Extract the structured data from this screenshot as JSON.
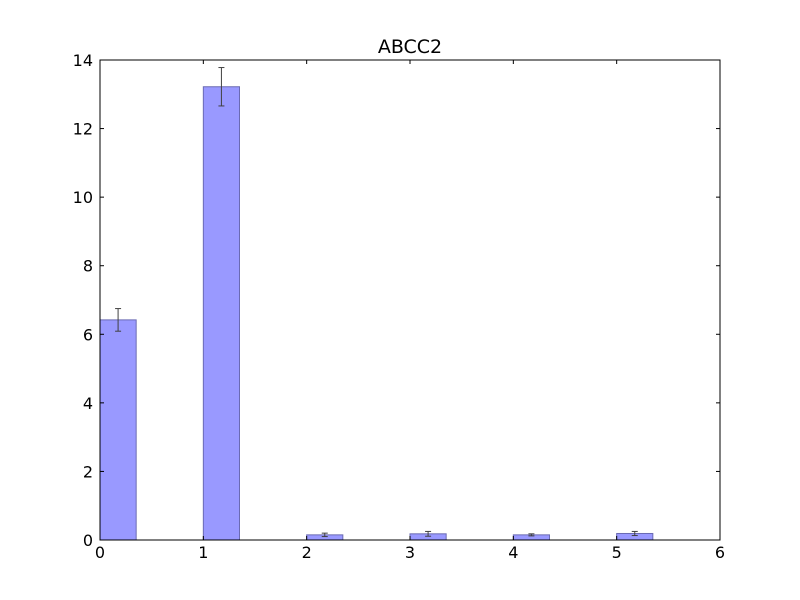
{
  "chart_data": {
    "type": "bar",
    "title": "ABCC2",
    "xlabel": "",
    "ylabel": "",
    "xlim": [
      0,
      6
    ],
    "ylim": [
      0,
      14
    ],
    "x_ticks": [
      "0",
      "1",
      "2",
      "3",
      "4",
      "5",
      "6"
    ],
    "y_ticks": [
      "0",
      "2",
      "4",
      "6",
      "8",
      "10",
      "12",
      "14"
    ],
    "grid": false,
    "bar_width": 0.35,
    "bars": [
      {
        "x": 0,
        "value": 6.42,
        "error": 0.33
      },
      {
        "x": 1,
        "value": 13.22,
        "error": 0.56
      },
      {
        "x": 2,
        "value": 0.15,
        "error": 0.05
      },
      {
        "x": 3,
        "value": 0.18,
        "error": 0.07
      },
      {
        "x": 4,
        "value": 0.15,
        "error": 0.03
      },
      {
        "x": 5,
        "value": 0.19,
        "error": 0.06
      }
    ],
    "colors": {
      "bar_fill": "#9999ff",
      "bar_edge": "#6a6ab3",
      "error_bar": "#404040",
      "axes": "#000000"
    }
  }
}
